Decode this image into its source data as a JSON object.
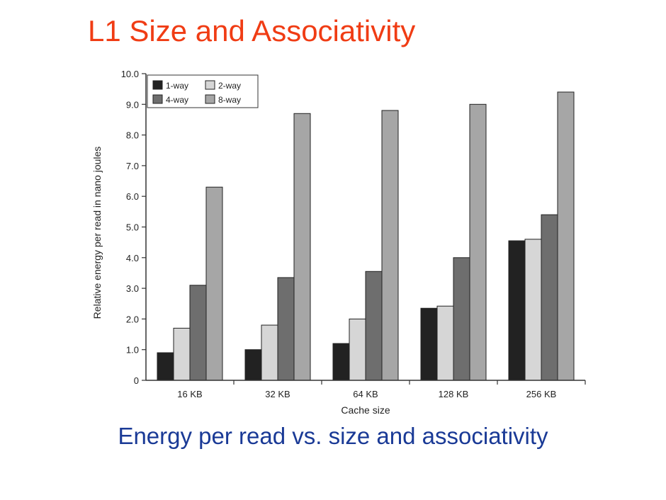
{
  "slide": {
    "title": "L1 Size and Associativity",
    "caption": "Energy per read vs. size and associativity"
  },
  "chart_data": {
    "type": "bar",
    "title": "",
    "xlabel": "Cache size",
    "ylabel": "Relative energy per read in nano joules",
    "categories": [
      "16 KB",
      "32 KB",
      "64 KB",
      "128 KB",
      "256 KB"
    ],
    "ylim": [
      0,
      10
    ],
    "yticks": [
      "0",
      "1.0",
      "2.0",
      "3.0",
      "4.0",
      "5.0",
      "6.0",
      "7.0",
      "8.0",
      "9.0",
      "10.0"
    ],
    "series": [
      {
        "name": "1-way",
        "color": "#222222",
        "values": [
          0.9,
          1.0,
          1.2,
          2.35,
          4.55
        ]
      },
      {
        "name": "2-way",
        "color": "#d6d6d6",
        "values": [
          1.7,
          1.8,
          2.0,
          2.42,
          4.6
        ]
      },
      {
        "name": "4-way",
        "color": "#6e6e6e",
        "values": [
          3.1,
          3.35,
          3.55,
          4.0,
          5.4
        ]
      },
      {
        "name": "8-way",
        "color": "#a6a6a6",
        "values": [
          6.3,
          8.7,
          8.8,
          9.0,
          9.4
        ]
      }
    ],
    "legend": "top-left",
    "grid": false
  }
}
